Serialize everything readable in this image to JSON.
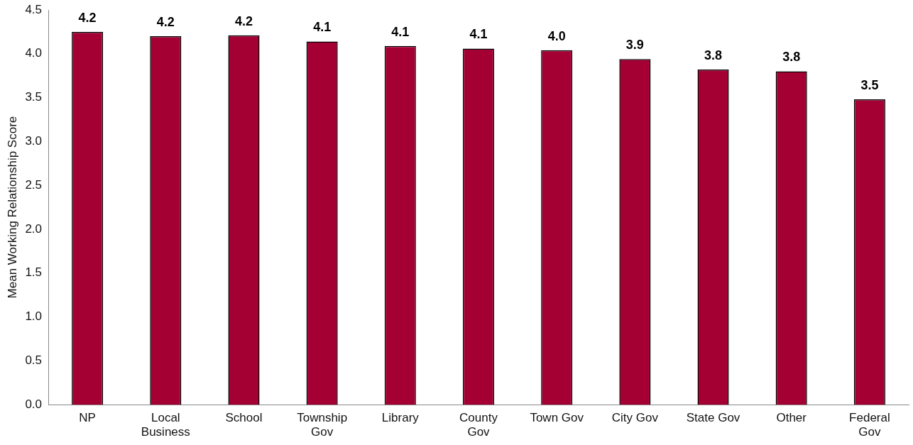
{
  "chart_data": {
    "type": "bar",
    "ylabel": "Mean Working Relationship Score",
    "categories": [
      "NP",
      "Local Business",
      "School",
      "Township Gov",
      "Library",
      "County Gov",
      "Town Gov",
      "City Gov",
      "State Gov",
      "Other",
      "Federal Gov"
    ],
    "values": [
      4.25,
      4.2,
      4.21,
      4.14,
      4.09,
      4.06,
      4.04,
      3.94,
      3.82,
      3.8,
      3.48
    ],
    "value_labels": [
      "4.2",
      "4.2",
      "4.2",
      "4.1",
      "4.1",
      "4.1",
      "4.0",
      "3.9",
      "3.8",
      "3.8",
      "3.5"
    ],
    "color": "#a50034",
    "ylim": [
      0,
      4.5
    ],
    "yticks": [
      "0.0",
      "0.5",
      "1.0",
      "1.5",
      "2.0",
      "2.5",
      "3.0",
      "3.5",
      "4.0",
      "4.5"
    ],
    "grid": false,
    "legend": false
  }
}
